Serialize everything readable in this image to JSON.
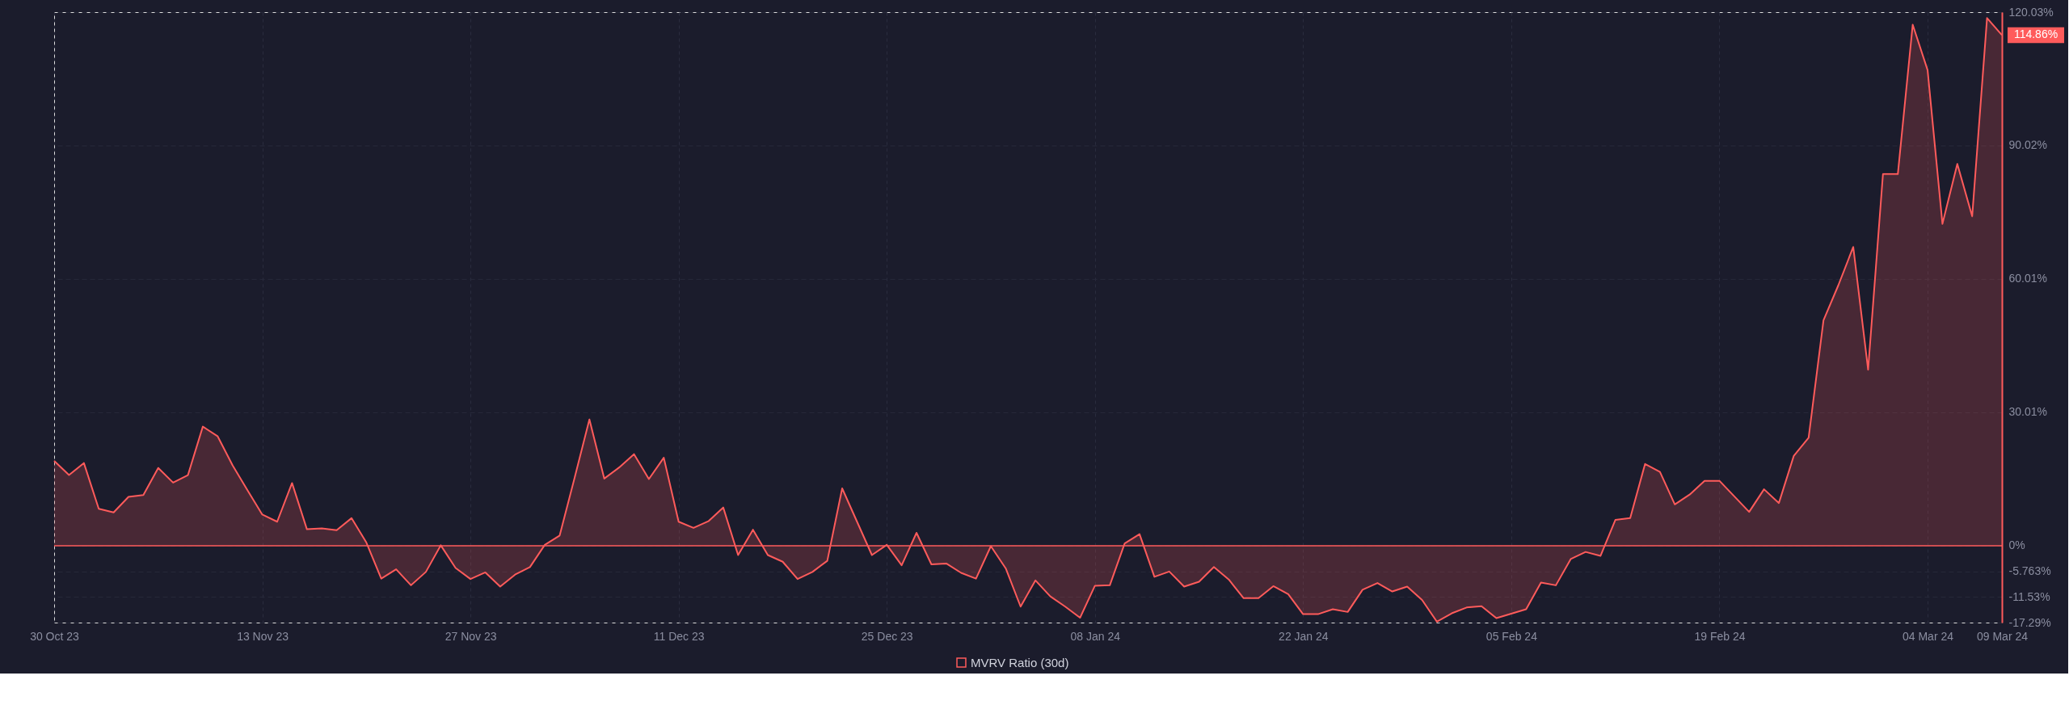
{
  "chart_data": {
    "type": "area",
    "x": [
      "2023-10-30",
      "2023-10-31",
      "2023-11-01",
      "2023-11-02",
      "2023-11-03",
      "2023-11-04",
      "2023-11-05",
      "2023-11-06",
      "2023-11-07",
      "2023-11-08",
      "2023-11-09",
      "2023-11-10",
      "2023-11-11",
      "2023-11-12",
      "2023-11-13",
      "2023-11-14",
      "2023-11-15",
      "2023-11-16",
      "2023-11-17",
      "2023-11-18",
      "2023-11-19",
      "2023-11-20",
      "2023-11-21",
      "2023-11-22",
      "2023-11-23",
      "2023-11-24",
      "2023-11-25",
      "2023-11-26",
      "2023-11-27",
      "2023-11-28",
      "2023-11-29",
      "2023-11-30",
      "2023-12-01",
      "2023-12-02",
      "2023-12-03",
      "2023-12-04",
      "2023-12-05",
      "2023-12-06",
      "2023-12-07",
      "2023-12-08",
      "2023-12-09",
      "2023-12-10",
      "2023-12-11",
      "2023-12-12",
      "2023-12-13",
      "2023-12-14",
      "2023-12-15",
      "2023-12-16",
      "2023-12-17",
      "2023-12-18",
      "2023-12-19",
      "2023-12-20",
      "2023-12-21",
      "2023-12-22",
      "2023-12-23",
      "2023-12-24",
      "2023-12-25",
      "2023-12-26",
      "2023-12-27",
      "2023-12-28",
      "2023-12-29",
      "2023-12-30",
      "2023-12-31",
      "2024-01-01",
      "2024-01-02",
      "2024-01-03",
      "2024-01-04",
      "2024-01-05",
      "2024-01-06",
      "2024-01-07",
      "2024-01-08",
      "2024-01-09",
      "2024-01-10",
      "2024-01-11",
      "2024-01-12",
      "2024-01-13",
      "2024-01-14",
      "2024-01-15",
      "2024-01-16",
      "2024-01-17",
      "2024-01-18",
      "2024-01-19",
      "2024-01-20",
      "2024-01-21",
      "2024-01-22",
      "2024-01-23",
      "2024-01-24",
      "2024-01-25",
      "2024-01-26",
      "2024-01-27",
      "2024-01-28",
      "2024-01-29",
      "2024-01-30",
      "2024-01-31",
      "2024-02-01",
      "2024-02-02",
      "2024-02-03",
      "2024-02-04",
      "2024-02-05",
      "2024-02-06",
      "2024-02-07",
      "2024-02-08",
      "2024-02-09",
      "2024-02-10",
      "2024-02-11",
      "2024-02-12",
      "2024-02-13",
      "2024-02-14",
      "2024-02-15",
      "2024-02-16",
      "2024-02-17",
      "2024-02-18",
      "2024-02-19",
      "2024-02-20",
      "2024-02-21",
      "2024-02-22",
      "2024-02-23",
      "2024-02-24",
      "2024-02-25",
      "2024-02-26",
      "2024-02-27",
      "2024-02-28",
      "2024-02-29",
      "2024-03-01",
      "2024-03-02",
      "2024-03-03",
      "2024-03-04",
      "2024-03-05",
      "2024-03-06",
      "2024-03-07",
      "2024-03-08",
      "2024-03-09"
    ],
    "series": [
      {
        "name": "MVRV Ratio (30d)",
        "color": "#ff5b5b",
        "values": [
          19.1,
          15.9,
          18.6,
          8.3,
          7.5,
          11.0,
          11.4,
          17.5,
          14.2,
          15.9,
          26.8,
          24.6,
          18.1,
          12.5,
          7.0,
          5.4,
          14.1,
          3.7,
          3.9,
          3.5,
          6.2,
          0.7,
          -7.4,
          -5.3,
          -8.9,
          -5.9,
          0.1,
          -5.0,
          -7.5,
          -6.0,
          -9.2,
          -6.5,
          -4.8,
          0.2,
          2.3,
          15.2,
          28.4,
          15.1,
          17.6,
          20.6,
          15.0,
          19.8,
          5.4,
          4.0,
          5.5,
          8.6,
          -2.1,
          3.6,
          -2.1,
          -3.6,
          -7.5,
          -5.9,
          -3.4,
          12.9,
          5.4,
          -2.1,
          0.2,
          -4.4,
          2.9,
          -4.2,
          -4.0,
          -6.1,
          -7.4,
          -0.1,
          -5.1,
          -13.7,
          -7.8,
          -11.4,
          -13.7,
          -16.2,
          -9.0,
          -8.9,
          0.5,
          2.6,
          -7.0,
          -5.8,
          -9.2,
          -8.1,
          -4.8,
          -7.6,
          -11.8,
          -11.8,
          -9.1,
          -10.9,
          -15.4,
          -15.4,
          -14.3,
          -14.9,
          -9.9,
          -8.4,
          -10.3,
          -9.2,
          -12.2,
          -17.1,
          -15.2,
          -13.9,
          -13.6,
          -16.3,
          -15.3,
          -14.3,
          -8.3,
          -8.9,
          -3.0,
          -1.4,
          -2.3,
          5.8,
          6.2,
          18.4,
          16.6,
          9.3,
          11.5,
          14.6,
          14.6,
          11.1,
          7.6,
          12.7,
          9.6,
          20.2,
          24.3,
          50.7,
          58.6,
          67.2,
          39.6,
          83.6,
          83.6,
          117.2,
          107.0,
          72.4,
          85.9,
          74.1,
          118.7,
          114.86
        ]
      }
    ],
    "xlim": [
      "2023-10-30",
      "2024-03-09"
    ],
    "xticks": [
      {
        "value": "2023-10-30",
        "label": "30 Oct 23"
      },
      {
        "value": "2023-11-13",
        "label": "13 Nov 23"
      },
      {
        "value": "2023-11-27",
        "label": "27 Nov 23"
      },
      {
        "value": "2023-12-11",
        "label": "11 Dec 23"
      },
      {
        "value": "2023-12-25",
        "label": "25 Dec 23"
      },
      {
        "value": "2024-01-08",
        "label": "08 Jan 24"
      },
      {
        "value": "2024-01-22",
        "label": "22 Jan 24"
      },
      {
        "value": "2024-02-05",
        "label": "05 Feb 24"
      },
      {
        "value": "2024-02-19",
        "label": "19 Feb 24"
      },
      {
        "value": "2024-03-04",
        "label": "04 Mar 24"
      },
      {
        "value": "2024-03-09",
        "label": "09 Mar 24"
      }
    ],
    "ylim": [
      -17.29,
      120.03
    ],
    "yticks": [
      {
        "value": -17.29,
        "label": "-17.29%"
      },
      {
        "value": -11.53,
        "label": "-11.53%"
      },
      {
        "value": -5.763,
        "label": "-5.763%"
      },
      {
        "value": 0,
        "label": "0%"
      },
      {
        "value": 30.01,
        "label": "30.01%"
      },
      {
        "value": 60.01,
        "label": "60.01%"
      },
      {
        "value": 90.02,
        "label": "90.02%"
      },
      {
        "value": 120.03,
        "label": "120.03%"
      }
    ],
    "ref_lines": [
      {
        "axis": "y",
        "value": 0,
        "color": "#ff5b5b"
      }
    ],
    "annotations": [
      {
        "text": "114.86%",
        "x": "2024-03-09",
        "y": 114.86
      }
    ],
    "grid": true,
    "legend": "bottom"
  }
}
